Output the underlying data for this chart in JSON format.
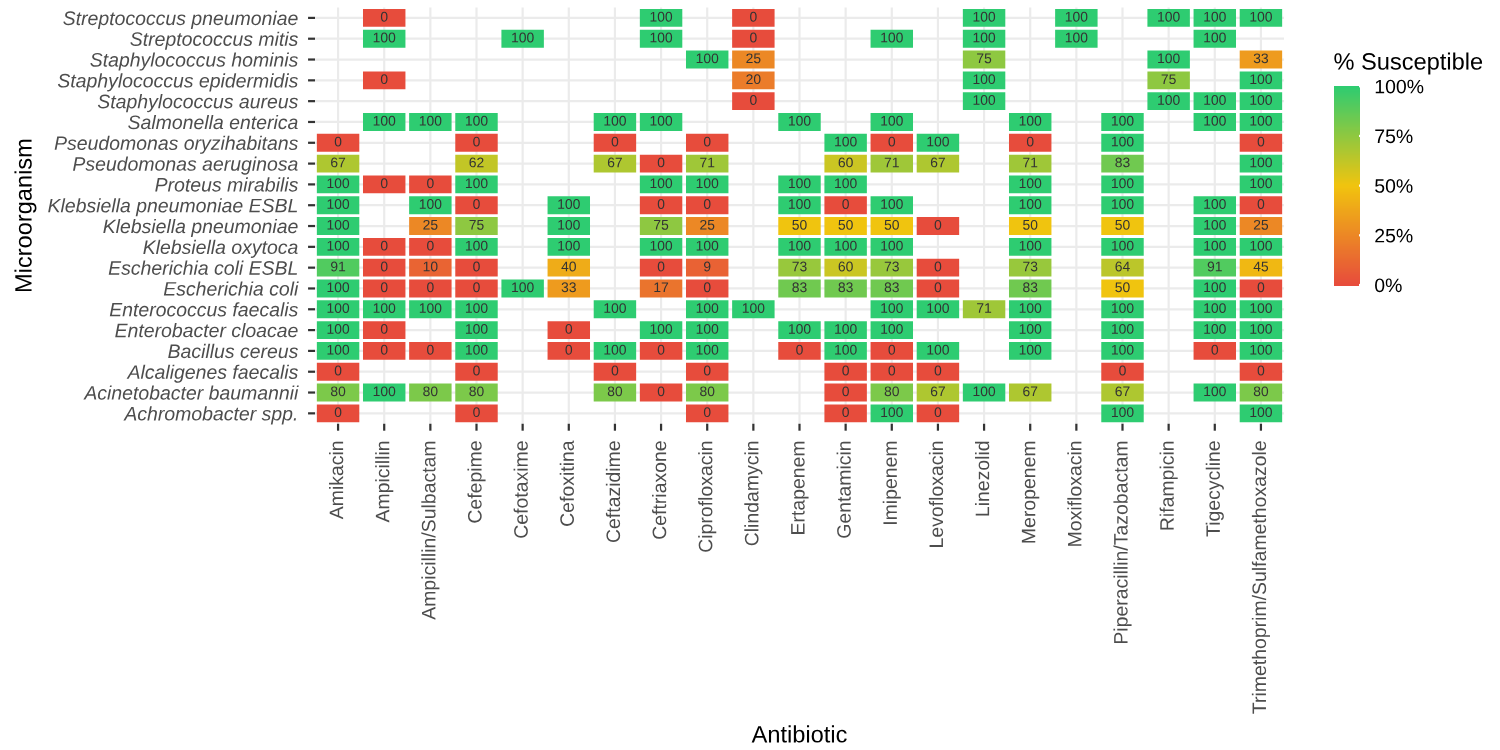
{
  "chart_data": {
    "type": "heatmap",
    "xlabel": "Antibiotic",
    "ylabel": "Microorganism",
    "clabel": "% Susceptible",
    "categories": [
      "Amikacin",
      "Ampicillin",
      "Ampicillin/Sulbactam",
      "Cefepime",
      "Cefotaxime",
      "Cefoxitina",
      "Ceftazidime",
      "Ceftriaxone",
      "Ciprofloxacin",
      "Clindamycin",
      "Ertapenem",
      "Gentamicin",
      "Imipenem",
      "Levofloxacin",
      "Linezolid",
      "Meropenem",
      "Moxifloxacin",
      "Piperacillin/Tazobactam",
      "Rifampicin",
      "Tigecycline",
      "Trimethoprim/Sulfamethoxazole"
    ],
    "y_categories": [
      "Streptococcus pneumoniae",
      "Streptococcus mitis",
      "Staphylococcus hominis",
      "Staphylococcus epidermidis",
      "Staphylococcus aureus",
      "Salmonella enterica",
      "Pseudomonas oryzihabitans",
      "Pseudomonas aeruginosa",
      "Proteus mirabilis",
      "Klebsiella pneumoniae ESBL",
      "Klebsiella pneumoniae",
      "Klebsiella oxytoca",
      "Escherichia coli ESBL",
      "Escherichia coli",
      "Enterococcus faecalis",
      "Enterobacter cloacae",
      "Bacillus cereus",
      "Alcaligenes faecalis",
      "Acinetobacter baumannii",
      "Achromobacter spp."
    ],
    "cells": [
      [
        null,
        0,
        null,
        null,
        null,
        null,
        null,
        100,
        null,
        0,
        null,
        null,
        null,
        null,
        100,
        null,
        100,
        null,
        100,
        100,
        100
      ],
      [
        null,
        100,
        null,
        null,
        100,
        null,
        null,
        100,
        null,
        0,
        null,
        null,
        100,
        null,
        100,
        null,
        100,
        null,
        null,
        100,
        null
      ],
      [
        null,
        null,
        null,
        null,
        null,
        null,
        null,
        null,
        100,
        25,
        null,
        null,
        null,
        null,
        75,
        null,
        null,
        null,
        100,
        null,
        33
      ],
      [
        null,
        0,
        null,
        null,
        null,
        null,
        null,
        null,
        null,
        20,
        null,
        null,
        null,
        null,
        100,
        null,
        null,
        null,
        75,
        null,
        100
      ],
      [
        null,
        null,
        null,
        null,
        null,
        null,
        null,
        null,
        null,
        0,
        null,
        null,
        null,
        null,
        100,
        null,
        null,
        null,
        100,
        100,
        100
      ],
      [
        null,
        100,
        100,
        100,
        null,
        null,
        100,
        100,
        null,
        null,
        100,
        null,
        100,
        null,
        null,
        100,
        null,
        100,
        null,
        100,
        100
      ],
      [
        0,
        null,
        null,
        0,
        null,
        null,
        0,
        null,
        0,
        null,
        null,
        100,
        0,
        100,
        null,
        0,
        null,
        100,
        null,
        null,
        0
      ],
      [
        67,
        null,
        null,
        62,
        null,
        null,
        67,
        0,
        71,
        null,
        null,
        60,
        71,
        67,
        null,
        71,
        null,
        83,
        null,
        null,
        100
      ],
      [
        100,
        0,
        0,
        100,
        null,
        null,
        null,
        100,
        100,
        null,
        100,
        100,
        null,
        null,
        null,
        100,
        null,
        100,
        null,
        null,
        100
      ],
      [
        100,
        null,
        100,
        0,
        null,
        100,
        null,
        0,
        0,
        null,
        100,
        0,
        100,
        null,
        null,
        100,
        null,
        100,
        null,
        100,
        0
      ],
      [
        100,
        null,
        25,
        75,
        null,
        100,
        null,
        75,
        25,
        null,
        50,
        50,
        50,
        0,
        null,
        50,
        null,
        50,
        null,
        100,
        25
      ],
      [
        100,
        0,
        0,
        100,
        null,
        100,
        null,
        100,
        100,
        null,
        100,
        100,
        100,
        null,
        null,
        100,
        null,
        100,
        null,
        100,
        100
      ],
      [
        91,
        0,
        10,
        0,
        null,
        40,
        null,
        0,
        9,
        null,
        73,
        60,
        73,
        0,
        null,
        73,
        null,
        64,
        null,
        91,
        45
      ],
      [
        100,
        0,
        0,
        0,
        100,
        33,
        null,
        17,
        0,
        null,
        83,
        83,
        83,
        0,
        null,
        83,
        null,
        50,
        null,
        100,
        0
      ],
      [
        100,
        100,
        100,
        100,
        null,
        null,
        100,
        null,
        100,
        100,
        null,
        null,
        100,
        100,
        71,
        100,
        null,
        100,
        null,
        100,
        100
      ],
      [
        100,
        0,
        null,
        100,
        null,
        0,
        null,
        100,
        100,
        null,
        100,
        100,
        100,
        null,
        null,
        100,
        null,
        100,
        null,
        100,
        100
      ],
      [
        100,
        0,
        0,
        100,
        null,
        0,
        100,
        0,
        100,
        null,
        0,
        100,
        0,
        100,
        null,
        100,
        null,
        100,
        null,
        0,
        100
      ],
      [
        0,
        null,
        null,
        0,
        null,
        null,
        0,
        null,
        0,
        null,
        null,
        0,
        0,
        0,
        null,
        null,
        null,
        0,
        null,
        null,
        0
      ],
      [
        80,
        100,
        80,
        80,
        null,
        null,
        80,
        0,
        80,
        null,
        null,
        0,
        80,
        67,
        100,
        67,
        null,
        67,
        null,
        100,
        80
      ],
      [
        0,
        null,
        null,
        0,
        null,
        null,
        null,
        null,
        0,
        null,
        null,
        0,
        100,
        0,
        null,
        null,
        null,
        100,
        null,
        null,
        100
      ]
    ],
    "data_labels": true,
    "colors": [
      "#e74c3c",
      "#f1c40f",
      "#2ecc71"
    ],
    "clim": [
      0,
      100
    ],
    "cticks": [
      {
        "value": 0,
        "label": "0%"
      },
      {
        "value": 25,
        "label": "25%"
      },
      {
        "value": 50,
        "label": "50%"
      },
      {
        "value": 75,
        "label": "75%"
      },
      {
        "value": 100,
        "label": "100%"
      }
    ],
    "grid": true
  }
}
